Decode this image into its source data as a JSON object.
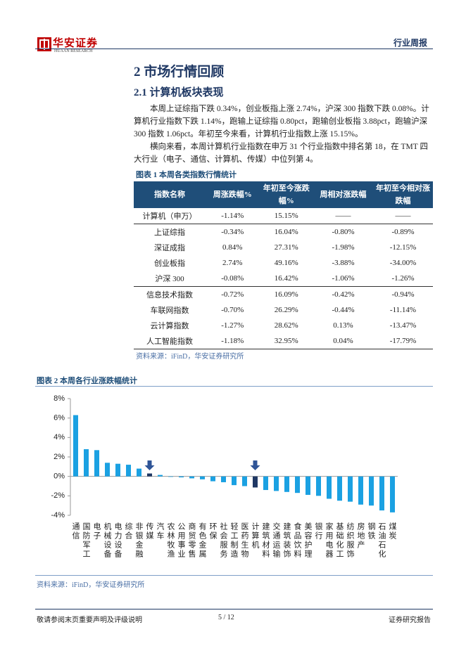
{
  "header": {
    "brand": "华安证券",
    "brand_en": "HUAAN RESEARCH",
    "report_type": "行业周报"
  },
  "section_title": "2 市场行情回顾",
  "subsection_title": "2.1 计算机板块表现",
  "paragraphs": [
    "本周上证综指下跌 0.34%，创业板指上涨 2.74%，沪深 300 指数下跌 0.08%。计算机行业指数下跌 1.14%，跑输上证综指 0.80pct，跑输创业板指 3.88pct，跑输沪深 300 指数 1.06pct。年初至今来看，计算机行业指数上涨 15.15%。",
    "横向来看，本周计算机行业指数在申万 31 个行业指数中排名第 18，在 TMT 四大行业（电子、通信、计算机、传媒）中位列第 4。"
  ],
  "table": {
    "caption": "图表 1 本周各类指数行情统计",
    "header": [
      "指数名称",
      "周涨跌幅%",
      "年初至今涨跌幅%",
      "周相对涨跌幅",
      "年初至今相对涨跌幅"
    ],
    "rows": [
      [
        "计算机（申万）",
        "-1.14%",
        "15.15%",
        "——",
        "——"
      ],
      [
        "上证综指",
        "-0.34%",
        "16.04%",
        "-0.80%",
        "-0.89%"
      ],
      [
        "深证成指",
        "0.84%",
        "27.31%",
        "-1.98%",
        "-12.15%"
      ],
      [
        "创业板指",
        "2.74%",
        "49.16%",
        "-3.88%",
        "-34.00%"
      ],
      [
        "沪深 300",
        "-0.08%",
        "16.42%",
        "-1.06%",
        "-1.26%"
      ],
      [
        "信息技术指数",
        "-0.72%",
        "16.09%",
        "-0.42%",
        "-0.94%"
      ],
      [
        "车联网指数",
        "-0.70%",
        "26.29%",
        "-0.44%",
        "-11.14%"
      ],
      [
        "云计算指数",
        "-1.27%",
        "28.62%",
        "0.13%",
        "-13.47%"
      ],
      [
        "人工智能指数",
        "-1.18%",
        "32.95%",
        "0.04%",
        "-17.79%"
      ]
    ],
    "source": "资料来源：iFinD，华安证券研究所"
  },
  "chart_caption": "图表 2 本周各行业涨跌幅统计",
  "chart_data": {
    "type": "bar",
    "categories": [
      "通信",
      "国防军工",
      "电子",
      "机械设备",
      "电力设备",
      "综合",
      "非银金融",
      "传媒",
      "汽车",
      "农林牧渔",
      "公用事业",
      "商贸零售",
      "有色金属",
      "环保",
      "社会服务",
      "轻工制造",
      "医药生物",
      "计算机",
      "建筑材料",
      "交通运输",
      "建筑装饰",
      "食品饮料",
      "美容护理",
      "银行",
      "家用电器",
      "基础化工",
      "纺织服饰",
      "房地产",
      "钢铁",
      "石油石化",
      "煤炭"
    ],
    "values": [
      6.3,
      2.8,
      2.7,
      1.4,
      1.3,
      1.2,
      0.8,
      0.3,
      0.15,
      -0.05,
      -0.1,
      -0.2,
      -0.3,
      -0.5,
      -0.6,
      -0.9,
      -1.0,
      -1.14,
      -1.4,
      -1.5,
      -1.6,
      -1.7,
      -1.9,
      -2.0,
      -2.3,
      -2.5,
      -2.6,
      -2.9,
      -3.0,
      -3.5,
      -3.7
    ],
    "colors": [
      "#1ba1e2",
      "#1ba1e2",
      "#1ba1e2",
      "#1ba1e2",
      "#1ba1e2",
      "#1ba1e2",
      "#1ba1e2",
      "#1f3864",
      "#1ba1e2",
      "#1ba1e2",
      "#1ba1e2",
      "#1ba1e2",
      "#1ba1e2",
      "#1ba1e2",
      "#1ba1e2",
      "#1ba1e2",
      "#1ba1e2",
      "#1f3864",
      "#1ba1e2",
      "#1ba1e2",
      "#1ba1e2",
      "#1ba1e2",
      "#1ba1e2",
      "#1ba1e2",
      "#1ba1e2",
      "#1ba1e2",
      "#1ba1e2",
      "#1ba1e2",
      "#1ba1e2",
      "#1ba1e2",
      "#1ba1e2"
    ],
    "ylim": [
      -4,
      8
    ],
    "yticks": [
      {
        "value": -4,
        "label": "-4%"
      },
      {
        "value": -2,
        "label": "-2%"
      },
      {
        "value": 0,
        "label": "0%"
      },
      {
        "value": 2,
        "label": "2%"
      },
      {
        "value": 4,
        "label": "4%"
      },
      {
        "value": 6,
        "label": "6%"
      },
      {
        "value": 8,
        "label": "8%"
      }
    ],
    "grid": false
  },
  "chart_source": "资料来源：iFinD，华安证券研究所",
  "footer": {
    "disclaimer": "敬请参阅末页重要声明及评级说明",
    "page": "5 / 12",
    "label": "证券研究报告"
  }
}
